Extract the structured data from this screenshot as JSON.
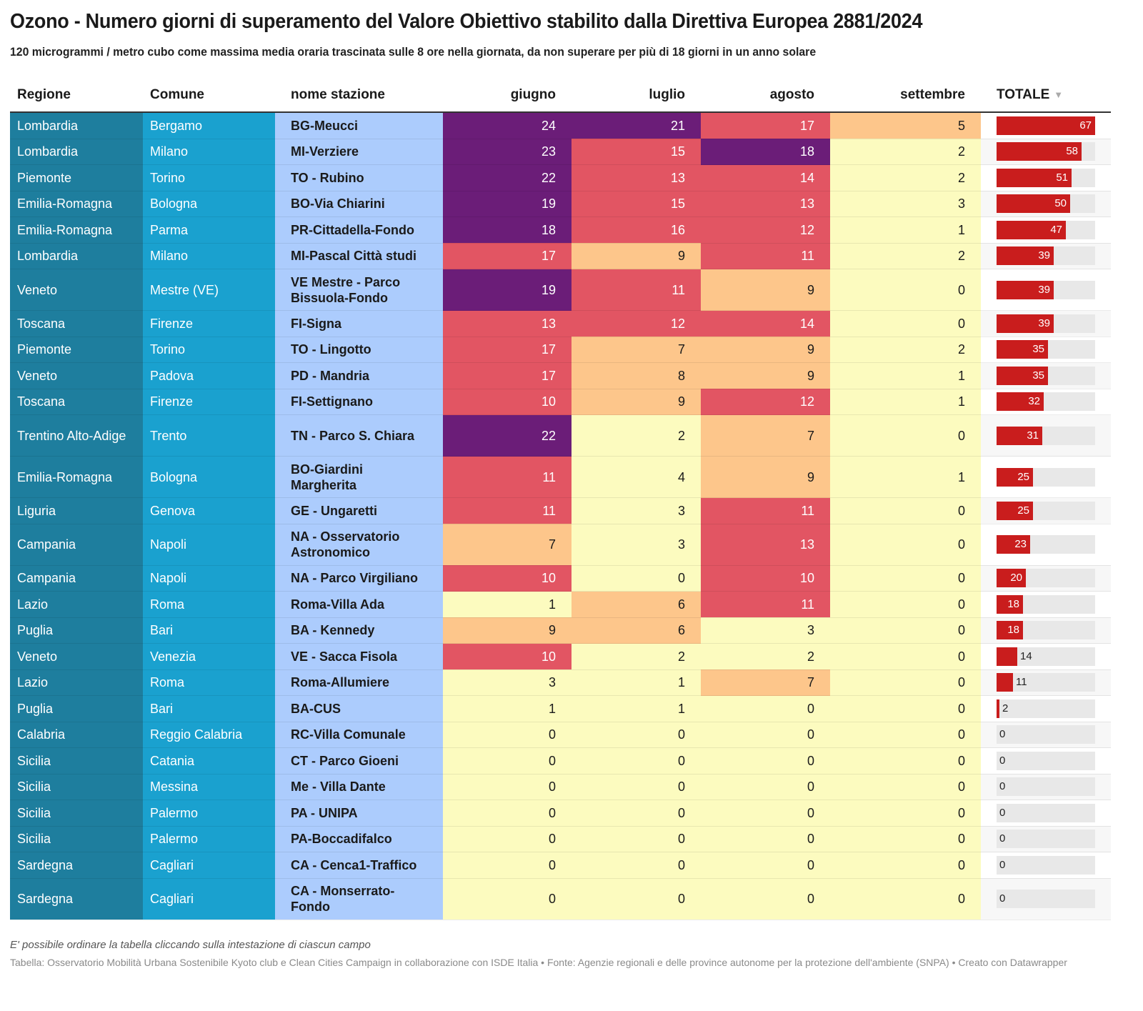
{
  "title": "Ozono - Numero giorni di superamento del Valore Obiettivo stabilito dalla Direttiva Europea 2881/2024",
  "subtitle": "120 microgrammi / metro cubo come massima media oraria trascinata sulle 8 ore nella giornata, da non superare per più di 18 giorni in un anno solare",
  "columns": {
    "regione": "Regione",
    "comune": "Comune",
    "stazione": "nome stazione",
    "giugno": "giugno",
    "luglio": "luglio",
    "agosto": "agosto",
    "settembre": "settembre",
    "totale": "TOTALE",
    "sort_icon": "▼"
  },
  "colors": {
    "regione_bg": "#1e7e9e",
    "comune_bg": "#1aa1cf",
    "stazione_bg": "#acccfd",
    "scale": [
      {
        "min": 18,
        "color": "#6b1d78",
        "text": "dark"
      },
      {
        "min": 10,
        "color": "#e25563",
        "text": "dark"
      },
      {
        "min": 5,
        "color": "#fdc68b",
        "text": "light"
      },
      {
        "min": 0,
        "color": "#fcfbbf",
        "text": "light"
      }
    ],
    "bar": "#c91d1d",
    "bar_track": "#e8e8e8"
  },
  "totale_max": 67,
  "rows": [
    {
      "regione": "Lombardia",
      "comune": "Bergamo",
      "stazione": "BG-Meucci",
      "giugno": 24,
      "luglio": 21,
      "agosto": 17,
      "settembre": 5,
      "totale": 67
    },
    {
      "regione": "Lombardia",
      "comune": "Milano",
      "stazione": "MI-Verziere",
      "giugno": 23,
      "luglio": 15,
      "agosto": 18,
      "settembre": 2,
      "totale": 58
    },
    {
      "regione": "Piemonte",
      "comune": "Torino",
      "stazione": "TO - Rubino",
      "giugno": 22,
      "luglio": 13,
      "agosto": 14,
      "settembre": 2,
      "totale": 51
    },
    {
      "regione": "Emilia-Romagna",
      "comune": "Bologna",
      "stazione": "BO-Via Chiarini",
      "giugno": 19,
      "luglio": 15,
      "agosto": 13,
      "settembre": 3,
      "totale": 50
    },
    {
      "regione": "Emilia-Romagna",
      "comune": "Parma",
      "stazione": "PR-Cittadella-Fondo",
      "giugno": 18,
      "luglio": 16,
      "agosto": 12,
      "settembre": 1,
      "totale": 47
    },
    {
      "regione": "Lombardia",
      "comune": "Milano",
      "stazione": "MI-Pascal Città studi",
      "giugno": 17,
      "luglio": 9,
      "agosto": 11,
      "settembre": 2,
      "totale": 39
    },
    {
      "regione": "Veneto",
      "comune": "Mestre (VE)",
      "stazione": "VE Mestre - Parco Bissuola-Fondo",
      "giugno": 19,
      "luglio": 11,
      "agosto": 9,
      "settembre": 0,
      "totale": 39
    },
    {
      "regione": "Toscana",
      "comune": "Firenze",
      "stazione": "FI-Signa",
      "giugno": 13,
      "luglio": 12,
      "agosto": 14,
      "settembre": 0,
      "totale": 39
    },
    {
      "regione": "Piemonte",
      "comune": "Torino",
      "stazione": "TO - Lingotto",
      "giugno": 17,
      "luglio": 7,
      "agosto": 9,
      "settembre": 2,
      "totale": 35
    },
    {
      "regione": "Veneto",
      "comune": "Padova",
      "stazione": "PD - Mandria",
      "giugno": 17,
      "luglio": 8,
      "agosto": 9,
      "settembre": 1,
      "totale": 35
    },
    {
      "regione": "Toscana",
      "comune": "Firenze",
      "stazione": "FI-Settignano",
      "giugno": 10,
      "luglio": 9,
      "agosto": 12,
      "settembre": 1,
      "totale": 32
    },
    {
      "regione": "Trentino Alto-Adige",
      "comune": "Trento",
      "stazione": "TN - Parco S. Chiara",
      "giugno": 22,
      "luglio": 2,
      "agosto": 7,
      "settembre": 0,
      "totale": 31
    },
    {
      "regione": "Emilia-Romagna",
      "comune": "Bologna",
      "stazione": "BO-Giardini Margherita",
      "giugno": 11,
      "luglio": 4,
      "agosto": 9,
      "settembre": 1,
      "totale": 25
    },
    {
      "regione": "Liguria",
      "comune": "Genova",
      "stazione": "GE - Ungaretti",
      "giugno": 11,
      "luglio": 3,
      "agosto": 11,
      "settembre": 0,
      "totale": 25
    },
    {
      "regione": "Campania",
      "comune": "Napoli",
      "stazione": "NA - Osservatorio Astronomico",
      "giugno": 7,
      "luglio": 3,
      "agosto": 13,
      "settembre": 0,
      "totale": 23
    },
    {
      "regione": "Campania",
      "comune": "Napoli",
      "stazione": "NA - Parco Virgiliano",
      "giugno": 10,
      "luglio": 0,
      "agosto": 10,
      "settembre": 0,
      "totale": 20
    },
    {
      "regione": "Lazio",
      "comune": "Roma",
      "stazione": "Roma-Villa Ada",
      "giugno": 1,
      "luglio": 6,
      "agosto": 11,
      "settembre": 0,
      "totale": 18
    },
    {
      "regione": "Puglia",
      "comune": "Bari",
      "stazione": "BA - Kennedy",
      "giugno": 9,
      "luglio": 6,
      "agosto": 3,
      "settembre": 0,
      "totale": 18
    },
    {
      "regione": "Veneto",
      "comune": "Venezia",
      "stazione": "VE - Sacca Fisola",
      "giugno": 10,
      "luglio": 2,
      "agosto": 2,
      "settembre": 0,
      "totale": 14
    },
    {
      "regione": "Lazio",
      "comune": "Roma",
      "stazione": "Roma-Allumiere",
      "giugno": 3,
      "luglio": 1,
      "agosto": 7,
      "settembre": 0,
      "totale": 11
    },
    {
      "regione": "Puglia",
      "comune": "Bari",
      "stazione": "BA-CUS",
      "giugno": 1,
      "luglio": 1,
      "agosto": 0,
      "settembre": 0,
      "totale": 2
    },
    {
      "regione": "Calabria",
      "comune": "Reggio Calabria",
      "stazione": "RC-Villa Comunale",
      "giugno": 0,
      "luglio": 0,
      "agosto": 0,
      "settembre": 0,
      "totale": 0
    },
    {
      "regione": "Sicilia",
      "comune": "Catania",
      "stazione": "CT - Parco Gioeni",
      "giugno": 0,
      "luglio": 0,
      "agosto": 0,
      "settembre": 0,
      "totale": 0
    },
    {
      "regione": "Sicilia",
      "comune": "Messina",
      "stazione": "Me - Villa Dante",
      "giugno": 0,
      "luglio": 0,
      "agosto": 0,
      "settembre": 0,
      "totale": 0
    },
    {
      "regione": "Sicilia",
      "comune": "Palermo",
      "stazione": "PA - UNIPA",
      "giugno": 0,
      "luglio": 0,
      "agosto": 0,
      "settembre": 0,
      "totale": 0
    },
    {
      "regione": "Sicilia",
      "comune": "Palermo",
      "stazione": "PA-Boccadifalco",
      "giugno": 0,
      "luglio": 0,
      "agosto": 0,
      "settembre": 0,
      "totale": 0
    },
    {
      "regione": "Sardegna",
      "comune": "Cagliari",
      "stazione": "CA - Cenca1-Traffico",
      "giugno": 0,
      "luglio": 0,
      "agosto": 0,
      "settembre": 0,
      "totale": 0
    },
    {
      "regione": "Sardegna",
      "comune": "Cagliari",
      "stazione": "CA - Monserrato-Fondo",
      "giugno": 0,
      "luglio": 0,
      "agosto": 0,
      "settembre": 0,
      "totale": 0
    }
  ],
  "footer": {
    "note": "E' possibile ordinare la tabella cliccando sulla intestazione di ciascun campo",
    "source": "Tabella: Osservatorio Mobilità Urbana Sostenibile Kyoto club e Clean Cities Campaign in collaborazione con ISDE Italia • Fonte: Agenzie regionali e delle province autonome per la protezione dell'ambiente (SNPA) • Creato con Datawrapper"
  }
}
